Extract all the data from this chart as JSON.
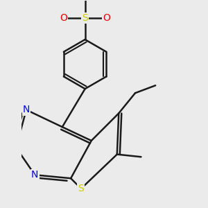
{
  "bg_color": "#ebebeb",
  "bond_color": "#1a1a1a",
  "bond_width": 1.8,
  "atom_colors": {
    "S_thio": "#cccc00",
    "S_sulfonyl": "#cccc00",
    "N": "#0000ee",
    "O": "#ee0000",
    "C": "#1a1a1a"
  },
  "xlim": [
    -0.55,
    0.75
  ],
  "ylim": [
    -0.85,
    0.78
  ]
}
